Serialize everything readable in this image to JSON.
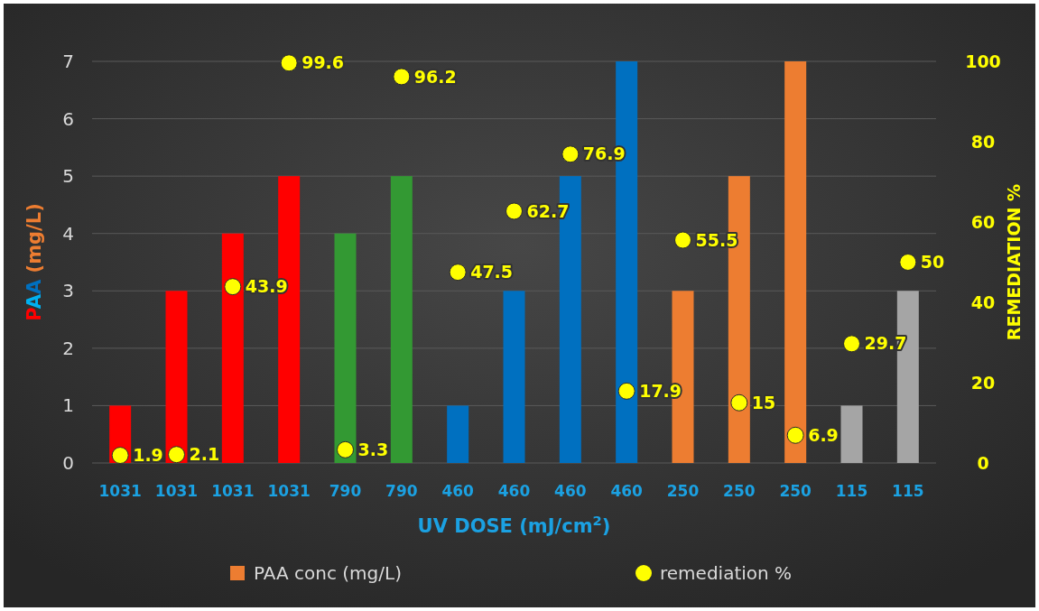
{
  "chart_data": {
    "type": "bar",
    "xlabel": "UV DOSE (mJ/cm$^{2}$)",
    "ylabel": "PAA (mg/L)",
    "y2label": "REMEDIATION %",
    "categories": [
      "1031",
      "1031",
      "1031",
      "1031",
      "790",
      "790",
      "460",
      "460",
      "460",
      "460",
      "250",
      "250",
      "250",
      "115",
      "115"
    ],
    "series": [
      {
        "name": "PAA conc (mg/L)",
        "color": "#ed7d31",
        "colors": [
          "#ff0000",
          "#ff0000",
          "#ff0000",
          "#ff0000",
          "#339933",
          "#339933",
          "#0070c0",
          "#0070c0",
          "#0070c0",
          "#0070c0",
          "#ed7d31",
          "#ed7d31",
          "#ed7d31",
          "#a5a5a5",
          "#a5a5a5"
        ],
        "values": [
          1,
          3,
          4,
          5,
          4,
          5,
          1,
          3,
          5,
          7,
          3,
          5,
          7,
          1,
          3
        ]
      },
      {
        "name": "remediation %",
        "type": "scatter",
        "axis": "y2",
        "color": "#ffff00",
        "values": [
          1.9,
          2.1,
          43.9,
          99.6,
          3.3,
          96.2,
          47.5,
          62.7,
          76.9,
          17.9,
          55.5,
          15,
          6.9,
          29.7,
          50
        ],
        "value_labels": [
          "1.9",
          "2.1",
          "43.9",
          "99.6",
          "3.3",
          "96.2",
          "47.5",
          "62.7",
          "76.9",
          "17.9",
          "55.5",
          "15",
          "6.9",
          "29.7",
          "50"
        ]
      }
    ],
    "ylim": [
      0,
      7
    ],
    "yticks": [
      0,
      1,
      2,
      3,
      4,
      5,
      6,
      7
    ],
    "y2lim": [
      0,
      100
    ],
    "y2ticks": [
      0,
      20,
      40,
      60,
      80,
      100
    ],
    "grid": "y",
    "legend": "bottom",
    "marker": "circle"
  }
}
